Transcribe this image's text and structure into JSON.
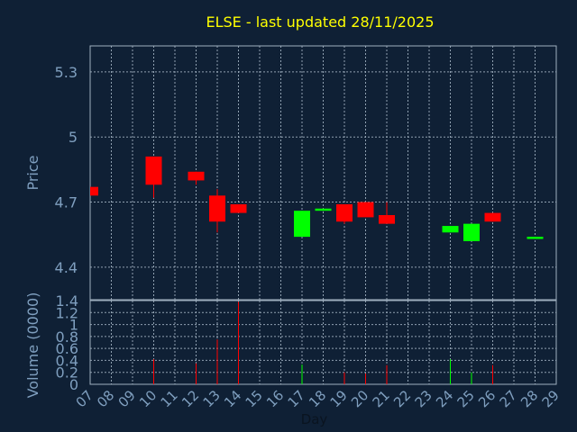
{
  "title": "ELSE - last updated 28/11/2025",
  "colors": {
    "background": "#0f2035",
    "title": "#ffff00",
    "axis_text": "#7f9fbf",
    "grid": "#9fafbf",
    "frame": "#9fafbf",
    "up": "#00ff00",
    "down": "#ff0000"
  },
  "chart_data": [
    {
      "type": "candlestick",
      "ylabel": "Price",
      "ylim": [
        4.25,
        5.42
      ],
      "yticks": [
        "4.4",
        "4.7",
        "5",
        "5.3"
      ],
      "ytick_values": [
        4.4,
        4.7,
        5.0,
        5.3
      ],
      "x_days": [
        7,
        8,
        9,
        10,
        11,
        12,
        13,
        14,
        15,
        16,
        17,
        18,
        19,
        20,
        21,
        22,
        23,
        24,
        25,
        26,
        27,
        28,
        29
      ],
      "grid": true,
      "candles": [
        {
          "day": 7,
          "open": 4.77,
          "close": 4.73,
          "high": 4.77,
          "low": 4.73
        },
        {
          "day": 10,
          "open": 4.91,
          "close": 4.78,
          "high": 4.91,
          "low": 4.72
        },
        {
          "day": 12,
          "open": 4.84,
          "close": 4.8,
          "high": 4.84,
          "low": 4.78
        },
        {
          "day": 13,
          "open": 4.73,
          "close": 4.61,
          "high": 4.76,
          "low": 4.56
        },
        {
          "day": 14,
          "open": 4.69,
          "close": 4.65,
          "high": 4.69,
          "low": 4.65
        },
        {
          "day": 17,
          "open": 4.54,
          "close": 4.66,
          "high": 4.66,
          "low": 4.54
        },
        {
          "day": 18,
          "open": 4.66,
          "close": 4.67,
          "high": 4.67,
          "low": 4.66
        },
        {
          "day": 19,
          "open": 4.69,
          "close": 4.61,
          "high": 4.69,
          "low": 4.6
        },
        {
          "day": 20,
          "open": 4.7,
          "close": 4.63,
          "high": 4.7,
          "low": 4.63
        },
        {
          "day": 21,
          "open": 4.64,
          "close": 4.6,
          "high": 4.7,
          "low": 4.6
        },
        {
          "day": 24,
          "open": 4.56,
          "close": 4.59,
          "high": 4.59,
          "low": 4.56
        },
        {
          "day": 25,
          "open": 4.52,
          "close": 4.6,
          "high": 4.6,
          "low": 4.52
        },
        {
          "day": 26,
          "open": 4.65,
          "close": 4.61,
          "high": 4.65,
          "low": 4.61
        },
        {
          "day": 28,
          "open": 4.53,
          "close": 4.54,
          "high": 4.54,
          "low": 4.53
        }
      ]
    },
    {
      "type": "bar",
      "xlabel": "Day",
      "ylabel": "Volume (0000)",
      "ylim": [
        0,
        1.4
      ],
      "yticks": [
        "0",
        "0.2",
        "0.4",
        "0.6",
        "0.8",
        "1",
        "1.2",
        "1.4"
      ],
      "ytick_values": [
        0,
        0.2,
        0.4,
        0.6,
        0.8,
        1.0,
        1.2,
        1.4
      ],
      "xticks": [
        "07",
        "08",
        "09",
        "10",
        "11",
        "12",
        "13",
        "14",
        "15",
        "16",
        "17",
        "18",
        "19",
        "20",
        "21",
        "22",
        "23",
        "24",
        "25",
        "26",
        "27",
        "28",
        "29"
      ],
      "x_days": [
        7,
        8,
        9,
        10,
        11,
        12,
        13,
        14,
        15,
        16,
        17,
        18,
        19,
        20,
        21,
        22,
        23,
        24,
        25,
        26,
        27,
        28,
        29
      ],
      "grid": true,
      "volumes": [
        {
          "day": 10,
          "value": 0.42,
          "dir": "down"
        },
        {
          "day": 12,
          "value": 0.35,
          "dir": "down"
        },
        {
          "day": 13,
          "value": 0.75,
          "dir": "down"
        },
        {
          "day": 14,
          "value": 1.38,
          "dir": "down"
        },
        {
          "day": 17,
          "value": 0.33,
          "dir": "up"
        },
        {
          "day": 19,
          "value": 0.2,
          "dir": "down"
        },
        {
          "day": 20,
          "value": 0.18,
          "dir": "down"
        },
        {
          "day": 21,
          "value": 0.32,
          "dir": "down"
        },
        {
          "day": 24,
          "value": 0.42,
          "dir": "up"
        },
        {
          "day": 25,
          "value": 0.2,
          "dir": "up"
        },
        {
          "day": 26,
          "value": 0.32,
          "dir": "down"
        }
      ]
    }
  ]
}
